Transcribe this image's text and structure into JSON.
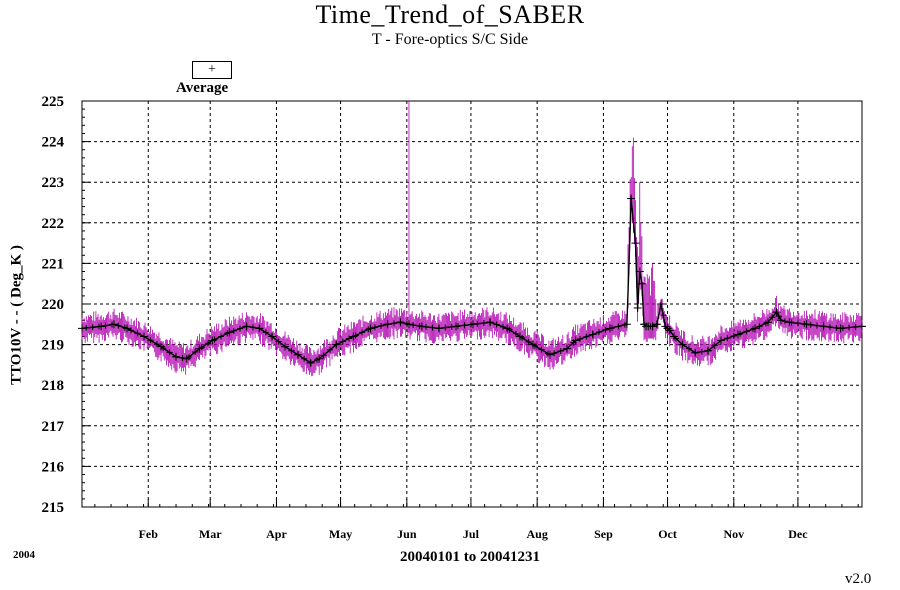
{
  "chart_data": {
    "type": "line",
    "title": "Time_Trend_of_SABER",
    "subtitle": "T - Fore-optics S/C Side",
    "ylabel": "TTO10V  - - ( Deg_K )",
    "xlabel": "20040101 to 20041231",
    "year_label": "2004",
    "version": "v2.0",
    "legend": {
      "symbol": "+",
      "label": "Average"
    },
    "ylim": [
      215,
      225
    ],
    "y_ticks": [
      215,
      216,
      217,
      218,
      219,
      220,
      221,
      222,
      223,
      224,
      225
    ],
    "xlim_day": [
      1,
      366
    ],
    "month_ticks": [
      {
        "label": "Feb",
        "day": 32
      },
      {
        "label": "Mar",
        "day": 61
      },
      {
        "label": "Apr",
        "day": 92
      },
      {
        "label": "May",
        "day": 122
      },
      {
        "label": "Jun",
        "day": 153
      },
      {
        "label": "Jul",
        "day": 183
      },
      {
        "label": "Aug",
        "day": 214
      },
      {
        "label": "Sep",
        "day": 245
      },
      {
        "label": "Oct",
        "day": 275
      },
      {
        "label": "Nov",
        "day": 306
      },
      {
        "label": "Dec",
        "day": 336
      }
    ],
    "grid": true,
    "colors": {
      "range": "#b000b0",
      "average": "#000000"
    },
    "series": [
      {
        "name": "Average",
        "x_day": [
          1,
          10,
          16,
          22,
          30,
          38,
          45,
          50,
          56,
          62,
          70,
          78,
          84,
          90,
          96,
          102,
          108,
          112,
          120,
          128,
          136,
          144,
          150,
          154,
          160,
          168,
          176,
          184,
          192,
          200,
          206,
          212,
          220,
          228,
          232,
          240,
          248,
          256,
          258,
          260,
          261,
          262,
          263,
          264,
          265,
          266,
          268,
          270,
          272,
          274,
          275,
          276,
          278,
          282,
          288,
          294,
          300,
          308,
          316,
          322,
          326,
          328,
          332,
          340,
          348,
          356,
          366
        ],
        "values": [
          219.4,
          219.45,
          219.5,
          219.4,
          219.2,
          218.95,
          218.7,
          218.65,
          218.9,
          219.1,
          219.3,
          219.45,
          219.4,
          219.2,
          218.95,
          218.75,
          218.55,
          218.65,
          219.0,
          219.2,
          219.4,
          219.5,
          219.55,
          219.5,
          219.45,
          219.4,
          219.45,
          219.5,
          219.55,
          219.4,
          219.2,
          219.0,
          218.75,
          218.9,
          219.1,
          219.25,
          219.4,
          219.5,
          222.6,
          221.5,
          219.9,
          220.8,
          220.5,
          219.5,
          219.45,
          219.45,
          219.45,
          219.5,
          220.0,
          219.45,
          219.4,
          219.35,
          219.2,
          219.0,
          218.8,
          218.85,
          219.1,
          219.25,
          219.4,
          219.55,
          219.8,
          219.6,
          219.55,
          219.5,
          219.45,
          219.4,
          219.45
        ]
      }
    ],
    "spikes": [
      {
        "day": 154,
        "max": 225.0
      },
      {
        "day": 259,
        "max": 224.1
      },
      {
        "day": 262,
        "max": 223.0
      },
      {
        "day": 268,
        "max": 221.0
      }
    ]
  }
}
